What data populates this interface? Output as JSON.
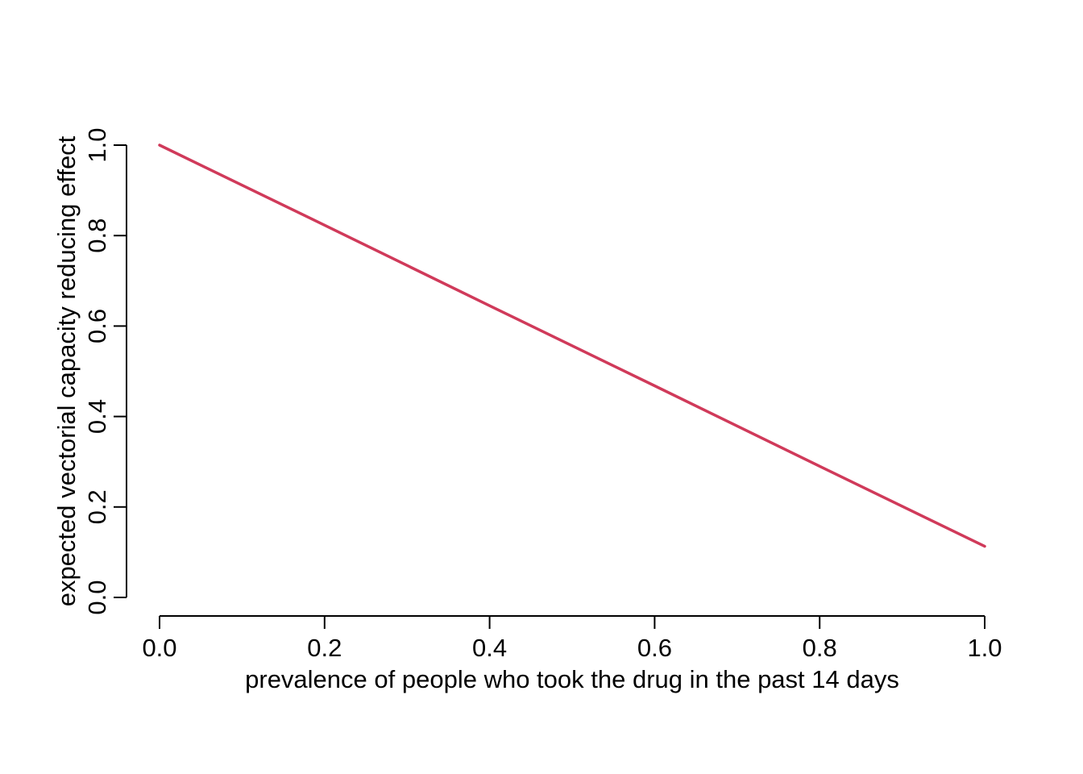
{
  "chart_data": {
    "type": "line",
    "title": "",
    "xlabel": "prevalence of people who took the drug in the past 14 days",
    "ylabel": "expected vectorial capacity reducing effect",
    "xlim": [
      0,
      1
    ],
    "ylim": [
      0,
      1
    ],
    "x_ticks": [
      "0.0",
      "0.2",
      "0.4",
      "0.6",
      "0.8",
      "1.0"
    ],
    "y_ticks": [
      "0.0",
      "0.2",
      "0.4",
      "0.6",
      "0.8",
      "1.0"
    ],
    "grid": false,
    "legend": "none",
    "series": [
      {
        "color": "#d03a5a",
        "x": [
          0.0,
          0.2,
          0.4,
          0.6,
          0.8,
          1.0
        ],
        "y": [
          1.0,
          0.823,
          0.645,
          0.468,
          0.29,
          0.113
        ]
      }
    ]
  }
}
